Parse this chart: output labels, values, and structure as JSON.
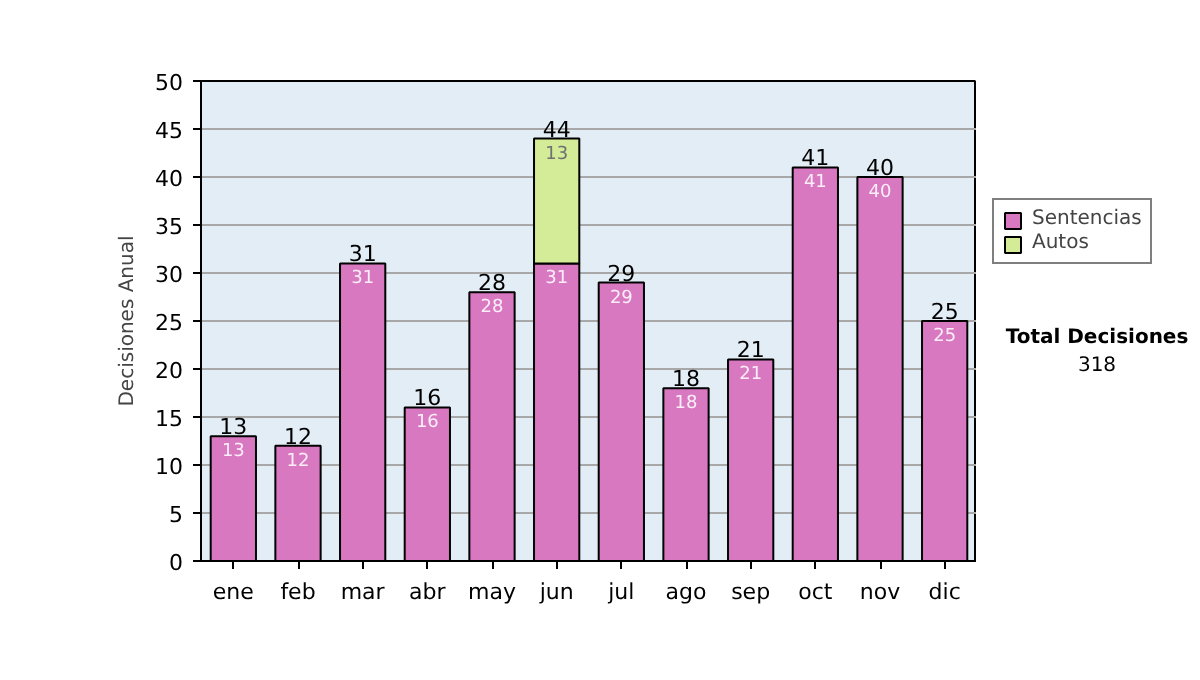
{
  "chart_data": {
    "type": "bar",
    "stacked": true,
    "ylabel": "Decisiones Anual",
    "categories": [
      "ene",
      "feb",
      "mar",
      "abr",
      "may",
      "jun",
      "jul",
      "ago",
      "sep",
      "oct",
      "nov",
      "dic"
    ],
    "series": [
      {
        "name": "Sentencias",
        "color": "#d878c0",
        "values": [
          13,
          12,
          31,
          16,
          28,
          31,
          29,
          18,
          21,
          41,
          40,
          25
        ]
      },
      {
        "name": "Autos",
        "color": "#d4ec98",
        "values": [
          null,
          null,
          null,
          null,
          null,
          13,
          null,
          null,
          null,
          null,
          null,
          null
        ]
      }
    ],
    "ylim": [
      0,
      50
    ],
    "yticks": [
      0,
      5,
      10,
      15,
      20,
      25,
      30,
      35,
      40,
      45,
      50
    ],
    "grid": "y",
    "legend": "right",
    "data_labels": true,
    "totals": [
      "13",
      "12",
      "31",
      "16",
      "28",
      "44",
      "29",
      "18",
      "21",
      "41",
      "40",
      "25"
    ],
    "annotations": [
      "Total Decisiones",
      "318"
    ]
  }
}
